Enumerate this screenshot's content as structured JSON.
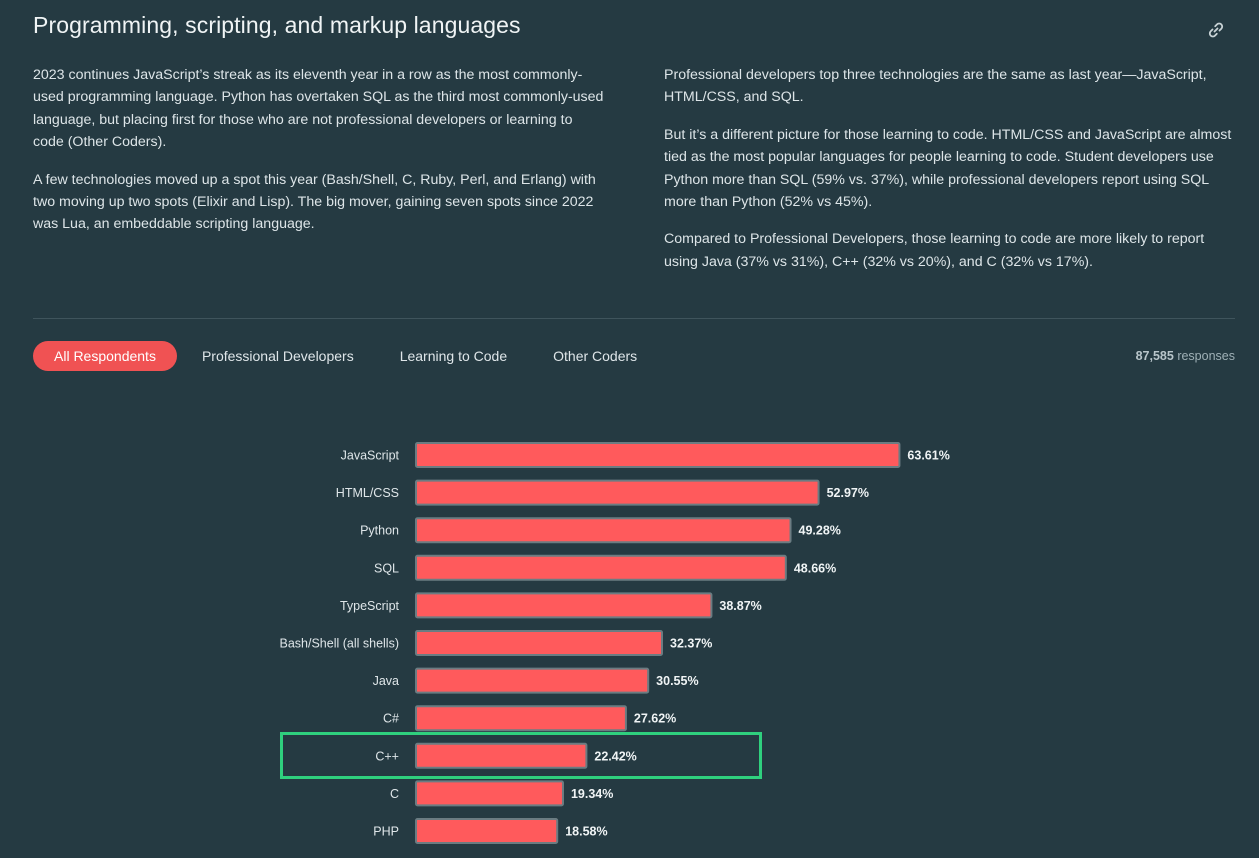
{
  "section": {
    "title": "Programming, scripting, and markup languages",
    "left_paragraphs": [
      "2023 continues JavaScript’s streak as its eleventh year in a row as the most commonly-used programming language. Python has overtaken SQL as the third most commonly-used language, but placing first for those who are not professional developers or learning to code (Other Coders).",
      "A few technologies moved up a spot this year (Bash/Shell, C, Ruby, Perl, and Erlang) with two moving up two spots (Elixir and Lisp). The big mover, gaining seven spots since 2022 was Lua, an embeddable scripting language."
    ],
    "right_paragraphs": [
      "Professional developers top three technologies are the same as last year—JavaScript, HTML/CSS, and SQL.",
      "But it’s a different picture for those learning to code. HTML/CSS and JavaScript are almost tied as the most popular languages for people learning to code. Student developers use Python more than SQL (59% vs. 37%), while professional developers report using SQL more than Python (52% vs 45%).",
      "Compared to Professional Developers, those learning to code are more likely to report using Java (37% vs 31%), C++ (32% vs 20%), and C (32% vs 17%)."
    ]
  },
  "tabs": [
    {
      "label": "All Respondents",
      "active": true
    },
    {
      "label": "Professional Developers",
      "active": false
    },
    {
      "label": "Learning to Code",
      "active": false
    },
    {
      "label": "Other Coders",
      "active": false
    }
  ],
  "responses": {
    "count": "87,585",
    "label": "responses"
  },
  "icons": {
    "permalink": "link-icon"
  },
  "colors": {
    "background": "#253a42",
    "bar": "#ff5a5c",
    "bar_outline": "#6b7c82",
    "active_tab": "#f05253",
    "highlight": "#2fd07e"
  },
  "chart_data": {
    "type": "bar",
    "orientation": "horizontal",
    "categories": [
      "JavaScript",
      "HTML/CSS",
      "Python",
      "SQL",
      "TypeScript",
      "Bash/Shell (all shells)",
      "Java",
      "C#",
      "C++",
      "C",
      "PHP"
    ],
    "values": [
      63.61,
      52.97,
      49.28,
      48.66,
      38.87,
      32.37,
      30.55,
      27.62,
      22.42,
      19.34,
      18.58
    ],
    "value_labels": [
      "63.61%",
      "52.97%",
      "49.28%",
      "48.66%",
      "38.87%",
      "32.37%",
      "30.55%",
      "27.62%",
      "22.42%",
      "19.34%",
      "18.58%"
    ],
    "unit": "%",
    "highlighted_category": "C++",
    "title": "",
    "xlabel": "",
    "ylabel": ""
  }
}
